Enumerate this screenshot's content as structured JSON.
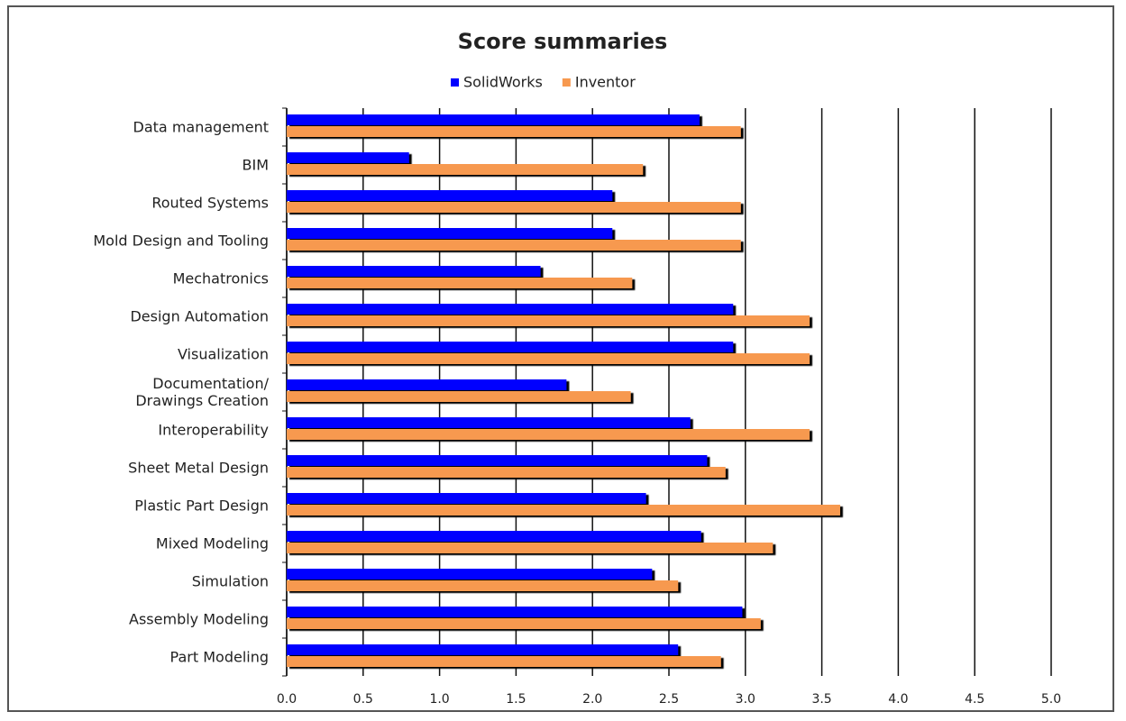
{
  "chart_data": {
    "type": "bar",
    "orientation": "horizontal",
    "title": "Score summaries",
    "categories": [
      "Data management",
      "BIM",
      "Routed Systems",
      "Mold Design and Tooling",
      "Mechatronics",
      "Design Automation",
      "Visualization",
      "Documentation/\nDrawings Creation",
      "Interoperability",
      "Sheet Metal Design",
      "Plastic Part Design",
      "Mixed Modeling",
      "Simulation",
      "Assembly Modeling",
      "Part Modeling"
    ],
    "series": [
      {
        "name": "SolidWorks",
        "color": "#0000ff",
        "values": [
          2.7,
          0.8,
          2.13,
          2.13,
          1.66,
          2.92,
          2.92,
          1.83,
          2.64,
          2.75,
          2.35,
          2.71,
          2.39,
          2.98,
          2.56
        ]
      },
      {
        "name": "Inventor",
        "color": "#f7994f",
        "values": [
          2.97,
          2.33,
          2.97,
          2.97,
          2.26,
          3.42,
          3.42,
          2.25,
          3.42,
          2.87,
          3.62,
          3.18,
          2.56,
          3.1,
          2.84
        ]
      }
    ],
    "xlim": [
      0,
      5
    ],
    "xticks": [
      {
        "value": 0,
        "label": "0.0"
      },
      {
        "value": 0.5,
        "label": "0.5"
      },
      {
        "value": 1,
        "label": "1.0"
      },
      {
        "value": 1.5,
        "label": "1.5"
      },
      {
        "value": 2,
        "label": "2.0"
      },
      {
        "value": 2.5,
        "label": "2.5"
      },
      {
        "value": 3,
        "label": "3.0"
      },
      {
        "value": 3.5,
        "label": "3.5"
      },
      {
        "value": 4,
        "label": "4.0"
      },
      {
        "value": 4.5,
        "label": "4.5"
      },
      {
        "value": 5,
        "label": "5.0"
      }
    ],
    "grid": true,
    "legend": "top"
  }
}
